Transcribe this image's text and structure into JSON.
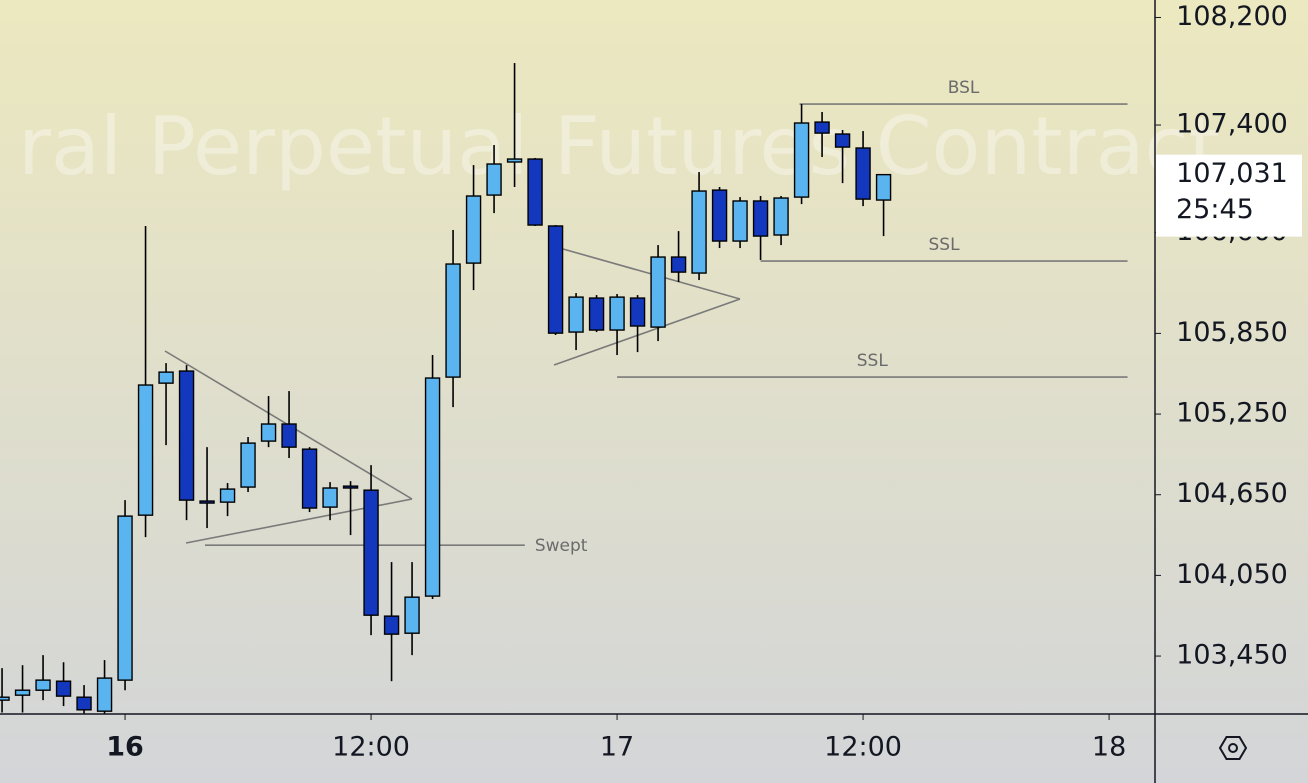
{
  "chart_data": {
    "type": "candlestick",
    "watermark": "ral Perpetual Futures Contract",
    "x": [
      -6,
      -5,
      -4,
      -3,
      -2,
      -1,
      0,
      1,
      2,
      3,
      4,
      5,
      6,
      7,
      8,
      9,
      10,
      11,
      12,
      13,
      14,
      15,
      16,
      17,
      18,
      19,
      20,
      21,
      22,
      23,
      24,
      25,
      26,
      27,
      28,
      29,
      30,
      31,
      32,
      33,
      34,
      35,
      36,
      37
    ],
    "open": [
      103122,
      103159,
      103196,
      103263,
      103144,
      103040,
      103271,
      104498,
      105480,
      105570,
      104603,
      104595,
      104707,
      105049,
      105176,
      104989,
      104558,
      104714,
      104684,
      103747,
      103620,
      103896,
      105525,
      106373,
      106879,
      107125,
      107147,
      106649,
      105860,
      106113,
      105875,
      106113,
      105897,
      106418,
      106299,
      106916,
      106537,
      106835,
      106582,
      106864,
      107422,
      107333,
      107229,
      106842
    ],
    "high": [
      103360,
      103382,
      103457,
      103404,
      103234,
      103420,
      104610,
      106649,
      105629,
      105614,
      105004,
      104737,
      105079,
      105384,
      105421,
      105004,
      104744,
      104751,
      104870,
      104149,
      104149,
      105689,
      106619,
      107102,
      107251,
      107861,
      107155,
      106656,
      106150,
      106135,
      106143,
      106135,
      106507,
      106611,
      107050,
      106939,
      106864,
      106872,
      106872,
      107556,
      107497,
      107363,
      107355,
      107031
    ],
    "low": [
      103030,
      103030,
      103122,
      103078,
      103020,
      103020,
      103196,
      104335,
      105019,
      104461,
      104402,
      104491,
      104670,
      105004,
      104923,
      104521,
      104461,
      104350,
      103606,
      103263,
      103457,
      103874,
      105302,
      106172,
      106745,
      106939,
      106649,
      105838,
      105726,
      105860,
      105689,
      105711,
      105793,
      106232,
      106247,
      106485,
      106485,
      106396,
      106507,
      106812,
      107162,
      106968,
      106797,
      106574
    ],
    "close": [
      103144,
      103196,
      103271,
      103152,
      103050,
      103286,
      104491,
      105466,
      105562,
      104610,
      104588,
      104692,
      105034,
      105176,
      105004,
      104551,
      104700,
      104700,
      103754,
      103613,
      103888,
      105518,
      106366,
      106872,
      107110,
      107147,
      106656,
      105852,
      106120,
      105875,
      106120,
      105905,
      106418,
      106306,
      106909,
      106537,
      106835,
      106574,
      106857,
      107415,
      107340,
      107236,
      106849,
      107031
    ],
    "up_color": "#5ab4ef",
    "down_color": "#1338be",
    "xlim": [
      -6.1,
      50.24
    ],
    "xticks": [
      {
        "value": 0,
        "label": "16"
      },
      {
        "value": 12,
        "label": "12:00"
      },
      {
        "value": 24,
        "label": "17"
      },
      {
        "value": 36,
        "label": "12:00"
      },
      {
        "value": 48,
        "label": "18"
      }
    ],
    "ylim": [
      103019,
      108330
    ],
    "yticks": [
      {
        "value": 108200,
        "label": "108,200"
      },
      {
        "value": 107400,
        "label": "107,400"
      },
      {
        "value": 106600,
        "label": "106,600"
      },
      {
        "value": 105850,
        "label": "105,850"
      },
      {
        "value": 105250,
        "label": "105,250"
      },
      {
        "value": 104650,
        "label": "104,650"
      },
      {
        "value": 104050,
        "label": "104,050"
      },
      {
        "value": 103450,
        "label": "103,450"
      }
    ],
    "last_price": {
      "value": 107031,
      "label": "107,031"
    },
    "countdown": "25:45",
    "levels": [
      {
        "text": "BSL",
        "y": 107556,
        "x1": 32.9,
        "x2": 48.9,
        "label_position": "center"
      },
      {
        "text": "SSL",
        "y": 106388,
        "x1": 31,
        "x2": 48.9,
        "label_position": "center"
      },
      {
        "text": "SSL",
        "y": 105525,
        "x1": 24,
        "x2": 48.9,
        "label_position": "center"
      },
      {
        "text": "Swept",
        "y": 104275,
        "x1": 3.9,
        "x2": 19.5,
        "label_position": "end"
      }
    ]
  }
}
